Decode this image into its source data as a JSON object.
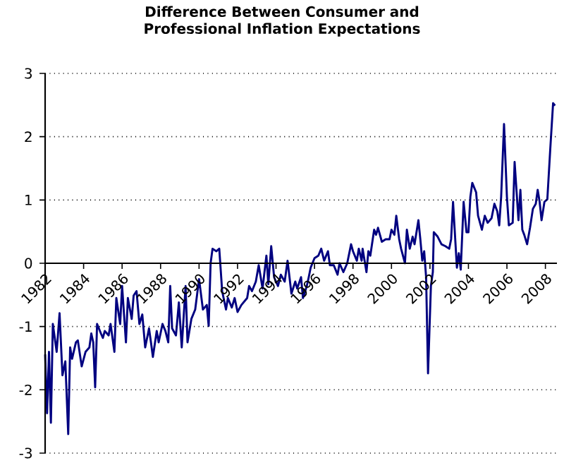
{
  "chart_data": {
    "type": "line",
    "title": "Difference Between Consumer and Professional Inflation Expectations",
    "xlim": [
      1982,
      2008.6
    ],
    "xticks": [
      1982,
      1984,
      1986,
      1988,
      1990,
      1992,
      1994,
      1996,
      1998,
      2000,
      2002,
      2004,
      2006,
      2008
    ],
    "ylim": [
      -3,
      3
    ],
    "yticks": [
      -3,
      -2,
      -1,
      0,
      1,
      2,
      3
    ],
    "grid": "y",
    "x": [
      1982.0,
      1982.1,
      1982.2,
      1982.3,
      1982.4,
      1982.6,
      1982.75,
      1982.9,
      1983.05,
      1983.2,
      1983.3,
      1983.4,
      1983.6,
      1983.7,
      1983.9,
      1984.1,
      1984.3,
      1984.4,
      1984.5,
      1984.6,
      1984.7,
      1984.9,
      1985.0,
      1985.1,
      1985.3,
      1985.4,
      1985.6,
      1985.7,
      1985.9,
      1986.0,
      1986.2,
      1986.3,
      1986.5,
      1986.6,
      1986.75,
      1986.9,
      1987.05,
      1987.2,
      1987.4,
      1987.5,
      1987.6,
      1987.8,
      1987.9,
      1988.1,
      1988.25,
      1988.4,
      1988.5,
      1988.6,
      1988.8,
      1988.95,
      1989.1,
      1989.3,
      1989.4,
      1989.6,
      1989.8,
      1990.0,
      1990.2,
      1990.4,
      1990.5,
      1990.6,
      1990.7,
      1990.9,
      1991.05,
      1991.2,
      1991.4,
      1991.5,
      1991.7,
      1991.85,
      1992.0,
      1992.2,
      1992.5,
      1992.6,
      1992.75,
      1992.95,
      1993.1,
      1993.3,
      1993.5,
      1993.6,
      1993.75,
      1993.9,
      1994.1,
      1994.25,
      1994.45,
      1994.6,
      1994.8,
      1995.0,
      1995.1,
      1995.3,
      1995.4,
      1995.6,
      1995.7,
      1995.8,
      1996.0,
      1996.2,
      1996.35,
      1996.5,
      1996.7,
      1996.8,
      1997.0,
      1997.2,
      1997.3,
      1997.5,
      1997.7,
      1997.9,
      1998.0,
      1998.2,
      1998.3,
      1998.45,
      1998.5,
      1998.7,
      1998.8,
      1998.9,
      1999.1,
      1999.2,
      1999.3,
      1999.5,
      1999.7,
      1999.9,
      2000.0,
      2000.15,
      2000.25,
      2000.4,
      2000.5,
      2000.7,
      2000.8,
      2000.95,
      2001.1,
      2001.2,
      2001.4,
      2001.5,
      2001.6,
      2001.7,
      2001.8,
      2001.9,
      2002.05,
      2002.15,
      2002.2,
      2002.4,
      2002.6,
      2002.8,
      2003.0,
      2003.1,
      2003.2,
      2003.4,
      2003.5,
      2003.6,
      2003.75,
      2003.9,
      2004.0,
      2004.1,
      2004.2,
      2004.4,
      2004.5,
      2004.7,
      2004.85,
      2005.0,
      2005.2,
      2005.35,
      2005.5,
      2005.6,
      2005.7,
      2005.85,
      2006.0,
      2006.1,
      2006.3,
      2006.4,
      2006.6,
      2006.7,
      2006.8,
      2006.9,
      2007.05,
      2007.2,
      2007.35,
      2007.5,
      2007.6,
      2007.7,
      2007.8,
      2007.95,
      2008.1,
      2008.25,
      2008.4,
      2008.5
    ],
    "series": [
      {
        "color": "#000080",
        "values": [
          -1.44,
          -2.37,
          -1.4,
          -2.52,
          -0.96,
          -1.4,
          -0.79,
          -1.77,
          -1.55,
          -2.7,
          -1.33,
          -1.51,
          -1.25,
          -1.22,
          -1.63,
          -1.4,
          -1.33,
          -1.11,
          -1.25,
          -1.96,
          -0.96,
          -1.11,
          -1.18,
          -1.07,
          -1.14,
          -0.96,
          -1.4,
          -0.55,
          -0.96,
          -0.36,
          -1.25,
          -0.55,
          -0.88,
          -0.51,
          -0.44,
          -0.96,
          -0.81,
          -1.33,
          -1.03,
          -1.25,
          -1.48,
          -1.07,
          -1.25,
          -0.96,
          -1.07,
          -1.25,
          -0.36,
          -1.03,
          -1.14,
          -0.62,
          -1.33,
          -0.36,
          -1.25,
          -0.88,
          -0.73,
          -0.25,
          -0.73,
          -0.66,
          -0.99,
          0.0,
          0.23,
          0.19,
          0.23,
          -0.44,
          -0.73,
          -0.55,
          -0.7,
          -0.55,
          -0.77,
          -0.66,
          -0.55,
          -0.36,
          -0.44,
          -0.29,
          -0.03,
          -0.4,
          0.12,
          -0.33,
          0.27,
          -0.22,
          -0.36,
          -0.18,
          -0.29,
          0.04,
          -0.48,
          -0.29,
          -0.4,
          -0.22,
          -0.55,
          -0.36,
          -0.22,
          -0.07,
          0.08,
          0.12,
          0.23,
          0.04,
          0.19,
          -0.03,
          -0.03,
          -0.18,
          0.0,
          -0.14,
          0.0,
          0.3,
          0.19,
          0.04,
          0.23,
          0.04,
          0.23,
          -0.14,
          0.19,
          0.12,
          0.53,
          0.45,
          0.56,
          0.34,
          0.38,
          0.38,
          0.53,
          0.45,
          0.75,
          0.38,
          0.23,
          0.0,
          0.53,
          0.23,
          0.42,
          0.3,
          0.68,
          0.38,
          0.04,
          0.19,
          -0.22,
          -1.74,
          -0.36,
          -0.14,
          0.49,
          0.42,
          0.3,
          0.27,
          0.23,
          0.38,
          0.97,
          -0.07,
          0.16,
          -0.1,
          0.97,
          0.49,
          0.49,
          1.05,
          1.27,
          1.12,
          0.75,
          0.53,
          0.75,
          0.64,
          0.71,
          0.94,
          0.82,
          0.6,
          1.05,
          2.2,
          1.05,
          0.6,
          0.64,
          1.6,
          0.68,
          1.16,
          0.53,
          0.45,
          0.3,
          0.56,
          0.86,
          0.94,
          1.16,
          0.97,
          0.68,
          0.97,
          1.01,
          1.79,
          2.53,
          2.49
        ]
      }
    ]
  }
}
